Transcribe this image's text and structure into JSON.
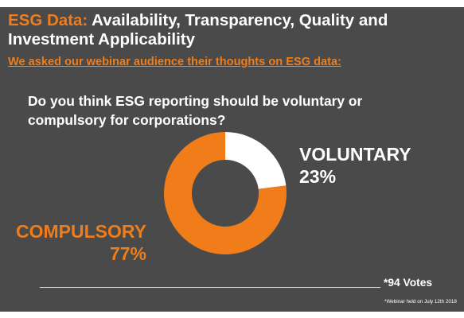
{
  "header": {
    "title_accent": "ESG Data:",
    "title_rest": " Availability, Transparency, Quality and Investment Applicability",
    "subtitle": "We asked our webinar audience their thoughts on ESG data:"
  },
  "colors": {
    "background": "#4a4a4a",
    "accent": "#f07d1a",
    "secondary": "#ffffff"
  },
  "chart_data": {
    "type": "pie",
    "title": "Do you think ESG reporting should be voluntary or compulsory for corporations?",
    "donut": true,
    "slices": [
      {
        "label": "VOLUNTARY",
        "value": 23,
        "value_label": "23%",
        "color": "#ffffff"
      },
      {
        "label": "COMPULSORY",
        "value": 77,
        "value_label": "77%",
        "color": "#f07d1a"
      }
    ]
  },
  "footer": {
    "votes": "*94 Votes",
    "note": "*Webinar held on July 12th 2018"
  }
}
